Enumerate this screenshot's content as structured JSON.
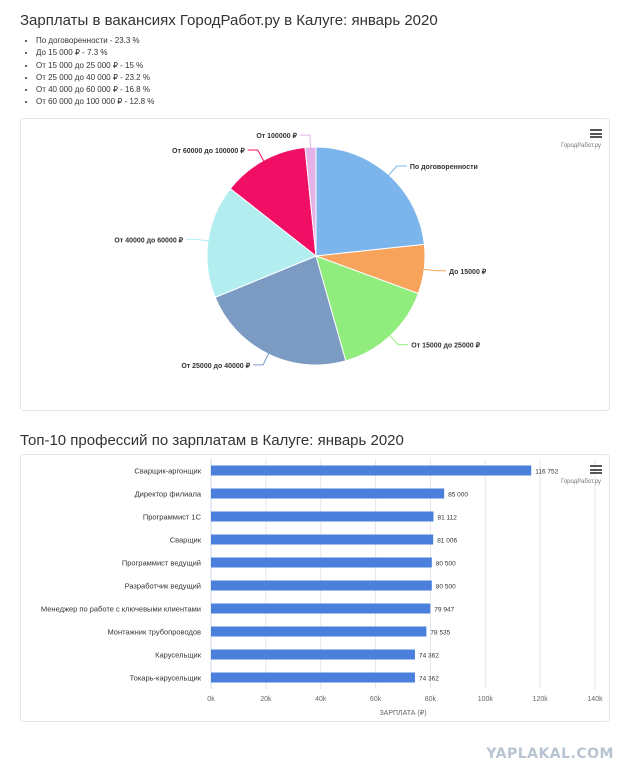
{
  "title1": "Зарплаты в вакансиях ГородРабот.ру в Калуге: январь 2020",
  "summary_items": [
    "По договоренности - 23.3 %",
    "До 15 000 ₽ - 7.3 %",
    "От 15 000 до 25 000 ₽ - 15 %",
    "От 25 000 до 40 000 ₽ - 23.2 %",
    "От 40 000 до 60 000 ₽ - 16.8 %",
    "От 60 000 до 100 000 ₽ - 12.8 %"
  ],
  "brand": "ГородРабот.ру",
  "title2": "Топ-10 профессий по зарплатам в Калуге: январь 2020",
  "watermark": "YAPLAKAL.COM",
  "chart_data": [
    {
      "type": "pie",
      "slices": [
        {
          "label": "По договоренности",
          "value": 23.3,
          "color": "#7cb5ec"
        },
        {
          "label": "До 15000 ₽",
          "value": 7.3,
          "color": "#f7a35c"
        },
        {
          "label": "От 15000 до 25000 ₽",
          "value": 15.0,
          "color": "#90ed7d"
        },
        {
          "label": "От 25000 до 40000 ₽",
          "value": 23.2,
          "color": "#7b9bc3"
        },
        {
          "label": "От 40000 до 60000 ₽",
          "value": 16.8,
          "color": "#b2eef0"
        },
        {
          "label": "От 60000 до 100000 ₽",
          "value": 12.8,
          "color": "#f10f65"
        },
        {
          "label": "От 100000 ₽",
          "value": 1.6,
          "color": "#e4b2e6"
        }
      ]
    },
    {
      "type": "bar",
      "orientation": "horizontal",
      "categories": [
        "Сварщик-аргонщик",
        "Директор филиала",
        "Программист 1С",
        "Сварщик",
        "Программист ведущий",
        "Разработчик ведущий",
        "Менеджер по работе с ключевыми клиентами",
        "Монтажник трубопроводов",
        "Карусельщик",
        "Токарь-карусельщик"
      ],
      "values": [
        116752,
        85000,
        81112,
        81006,
        80500,
        80500,
        79947,
        78535,
        74362,
        74362
      ],
      "value_labels": [
        "116 752",
        "85 000",
        "81 112",
        "81 006",
        "80 500",
        "80 500",
        "79 947",
        "78 535",
        "74 362",
        "74 362"
      ],
      "bar_color": "#4a7fdc",
      "xlim": [
        0,
        140000
      ],
      "xticks": [
        "0k",
        "20k",
        "40k",
        "60k",
        "80k",
        "100k",
        "120k",
        "140k"
      ],
      "xlabel": "ЗАРПЛАТА (₽)",
      "grid": true
    }
  ]
}
